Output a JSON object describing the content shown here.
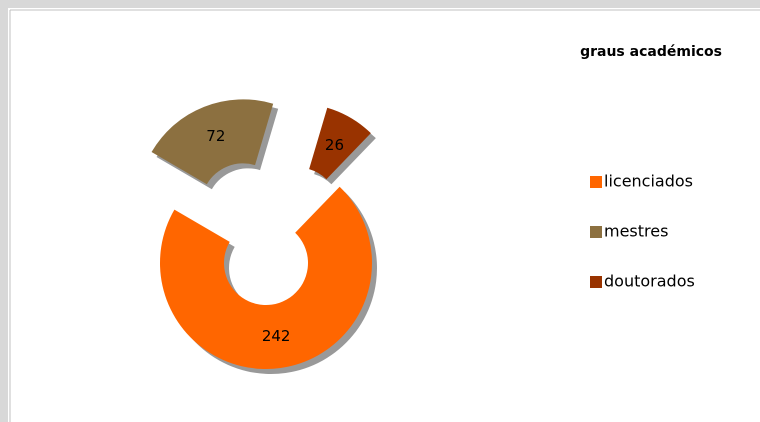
{
  "chart_data": {
    "type": "pie",
    "title": "graus académicos",
    "categories": [
      "licenciados",
      "mestres",
      "doutorados"
    ],
    "values": [
      242,
      72,
      26
    ],
    "colors": [
      "#ff6600",
      "#8c7040",
      "#993300"
    ],
    "donut": true,
    "exploded": [
      false,
      true,
      true
    ],
    "legend": "right"
  }
}
